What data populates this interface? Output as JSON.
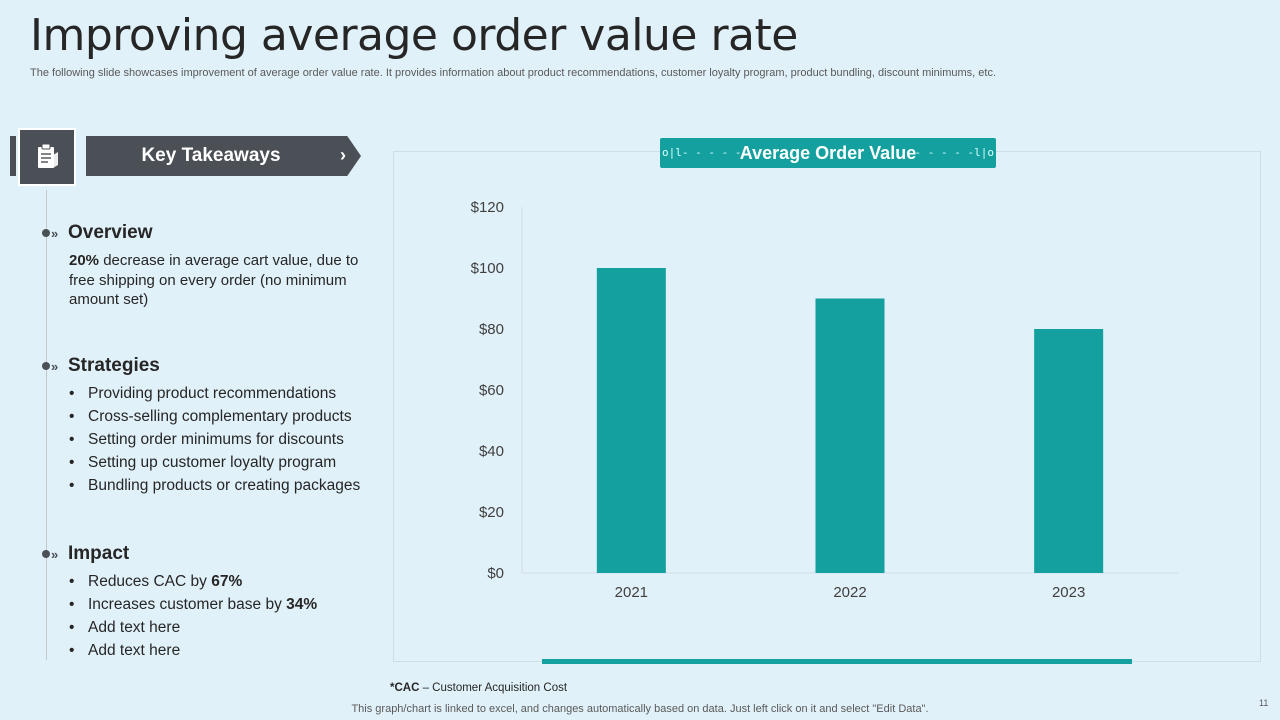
{
  "header": {
    "title": "Improving average order value rate",
    "subtitle": "The following slide showcases improvement of average order value rate. It provides information about product recommendations, customer loyalty program, product bundling, discount minimums, etc."
  },
  "takeaways": {
    "label": "Key Takeaways",
    "chevron": "›",
    "icon": "clipboard-icon"
  },
  "overview": {
    "title": "Overview",
    "highlight": "20%",
    "text": " decrease in average cart value, due to free shipping on every order (no minimum amount set)"
  },
  "strategies": {
    "title": "Strategies",
    "items": [
      "Providing product recommendations",
      "Cross-selling complementary  products",
      "Setting order minimums for discounts",
      "Setting up customer loyalty  program",
      "Bundling products or creating packages"
    ]
  },
  "impact": {
    "title": "Impact",
    "items": [
      {
        "text": "Reduces CAC by ",
        "bold": "67%"
      },
      {
        "text": "Increases  customer base by ",
        "bold": "34%"
      },
      {
        "text": "Add text here",
        "bold": ""
      },
      {
        "text": "Add text here",
        "bold": ""
      }
    ]
  },
  "bullet_char": "•",
  "marker_chevron": "»",
  "chart_data": {
    "type": "bar",
    "title": "Average Order Value",
    "categories": [
      "2021",
      "2022",
      "2023"
    ],
    "values": [
      100,
      90,
      80
    ],
    "ylim": [
      0,
      120
    ],
    "yticks": [
      0,
      20,
      40,
      60,
      80,
      100,
      120
    ],
    "ytick_labels": [
      "$0",
      "$20",
      "$40",
      "$60",
      "$80",
      "$100",
      "$120"
    ],
    "xlabel": "",
    "ylabel": "",
    "grid": false,
    "color": "#14a09f"
  },
  "footnote": {
    "abbr": "*CAC",
    "text": " – Customer Acquisition Cost"
  },
  "footer": {
    "note": "This graph/chart is linked to excel,  and changes automatically based on data. Just left click on it and select \"Edit Data\".",
    "page": "11"
  },
  "colors": {
    "background": "#e1f1f9",
    "accent": "#14a09f",
    "dark": "#4b4f56"
  }
}
